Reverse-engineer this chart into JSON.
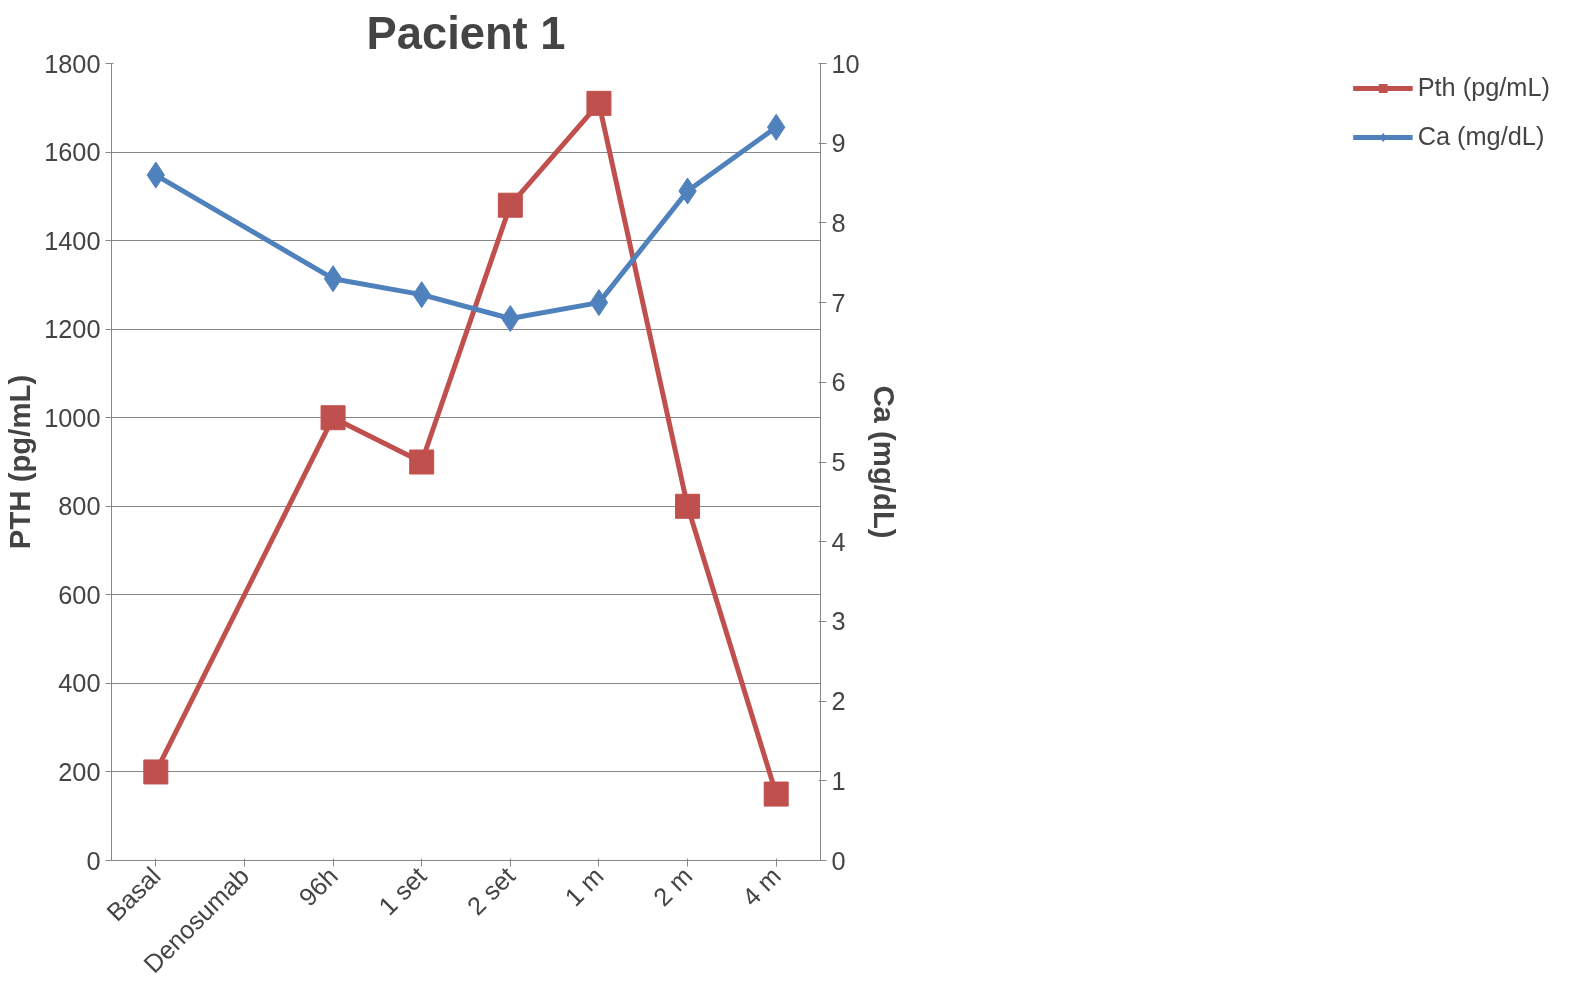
{
  "chart_data": {
    "type": "line",
    "title": "Pacient 1",
    "ylabel": "PTH (pg/mL)",
    "y2label": "Ca (mg/dL)",
    "categories": [
      "Basal",
      "Denosumab",
      "96h",
      "1 set",
      "2 set",
      "1 m",
      "2 m",
      "4 m"
    ],
    "series": [
      {
        "name": "Pth (pg/mL)",
        "color": "#c0504d",
        "marker": "square",
        "values": [
          200,
          null,
          1000,
          900,
          1480,
          1710,
          800,
          150
        ]
      },
      {
        "name": "Ca (mg/dL)",
        "color": "#4f81bd",
        "marker": "diamond",
        "axis": "y2",
        "values": [
          8.6,
          null,
          7.3,
          7.1,
          6.8,
          7.0,
          8.4,
          9.2
        ]
      }
    ],
    "ylim": [
      0,
      1800
    ],
    "yticks": [
      0,
      200,
      400,
      600,
      800,
      1000,
      1200,
      1400,
      1600,
      1800
    ],
    "y2lim": [
      0,
      10
    ],
    "y2ticks": [
      0,
      1,
      2,
      3,
      4,
      5,
      6,
      7,
      8,
      9,
      10
    ],
    "grid": "y",
    "legend": "right",
    "line_style": "solid"
  }
}
